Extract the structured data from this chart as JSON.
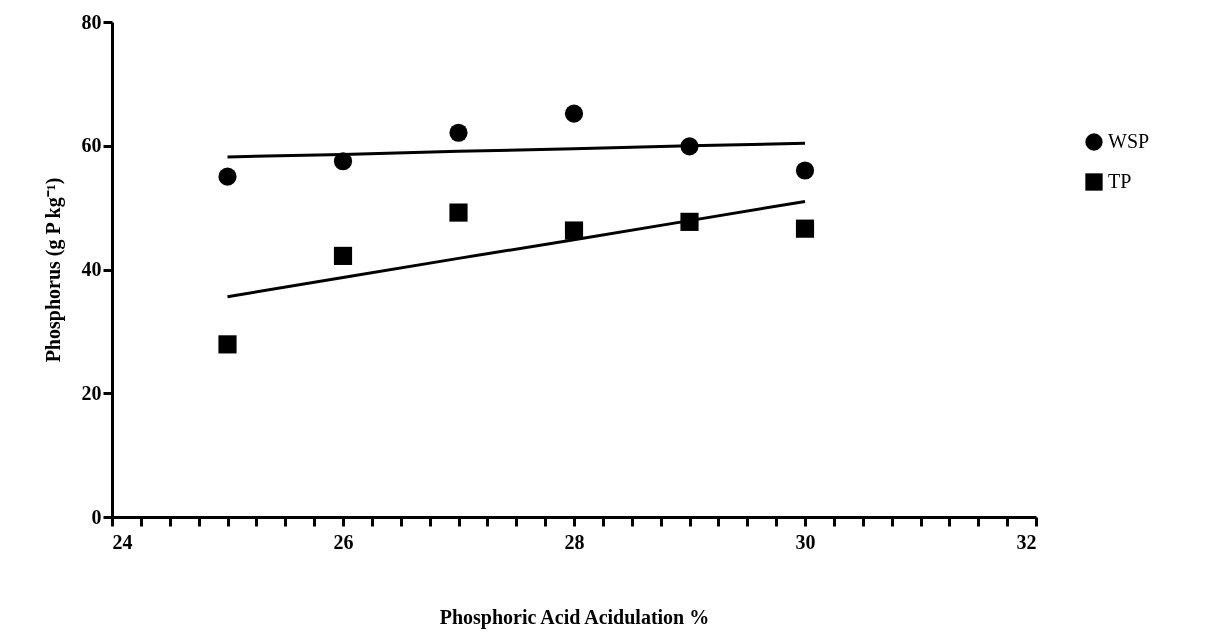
{
  "chart_data": {
    "type": "scatter",
    "xlabel": "Phosphoric Acid Acidulation  %",
    "ylabel": "Phosphorus (g P kg⁻¹)",
    "x": [
      25,
      26,
      27,
      28,
      29,
      30
    ],
    "series": [
      {
        "name": "WSP",
        "marker": "circle",
        "color": "#000000",
        "values": [
          55.0,
          57.5,
          62.1,
          65.2,
          59.9,
          56.0
        ]
      },
      {
        "name": "TP",
        "marker": "square",
        "color": "#000000",
        "values": [
          27.9,
          42.2,
          49.2,
          46.3,
          47.7,
          46.6
        ]
      },
      {
        "type": "line",
        "color": "#000000",
        "values": [
          58.2,
          58.6,
          59.1,
          59.5,
          60.0,
          60.4
        ]
      },
      {
        "type": "line",
        "color": "#000000",
        "values": [
          35.6,
          38.7,
          41.8,
          44.8,
          47.9,
          51.0
        ]
      }
    ],
    "xlim": [
      24,
      32
    ],
    "xticks": [
      24,
      {
        "value": 24.25,
        "label": null
      },
      {
        "value": 24.5,
        "label": null
      },
      {
        "value": 24.75,
        "label": null
      },
      {
        "value": 25,
        "label": null
      },
      {
        "value": 25.25,
        "label": null
      },
      {
        "value": 25.5,
        "label": null
      },
      {
        "value": 25.75,
        "label": null
      },
      26,
      {
        "value": 26.25,
        "label": null
      },
      {
        "value": 26.5,
        "label": null
      },
      {
        "value": 26.75,
        "label": null
      },
      {
        "value": 27,
        "label": null
      },
      {
        "value": 27.25,
        "label": null
      },
      {
        "value": 27.5,
        "label": null
      },
      {
        "value": 27.75,
        "label": null
      },
      28,
      {
        "value": 28.25,
        "label": null
      },
      {
        "value": 28.5,
        "label": null
      },
      {
        "value": 28.75,
        "label": null
      },
      {
        "value": 29,
        "label": null
      },
      {
        "value": 29.25,
        "label": null
      },
      {
        "value": 29.5,
        "label": null
      },
      {
        "value": 29.75,
        "label": null
      },
      30,
      {
        "value": 30.25,
        "label": null
      },
      {
        "value": 30.5,
        "label": null
      },
      {
        "value": 30.75,
        "label": null
      },
      {
        "value": 31,
        "label": null
      },
      {
        "value": 31.25,
        "label": null
      },
      {
        "value": 31.5,
        "label": null
      },
      {
        "value": 31.75,
        "label": null
      },
      32
    ],
    "ylim": [
      0,
      80
    ],
    "yticks": [
      0,
      20,
      40,
      60,
      80
    ],
    "grid": false,
    "legend": "right",
    "line_style": "solid"
  }
}
